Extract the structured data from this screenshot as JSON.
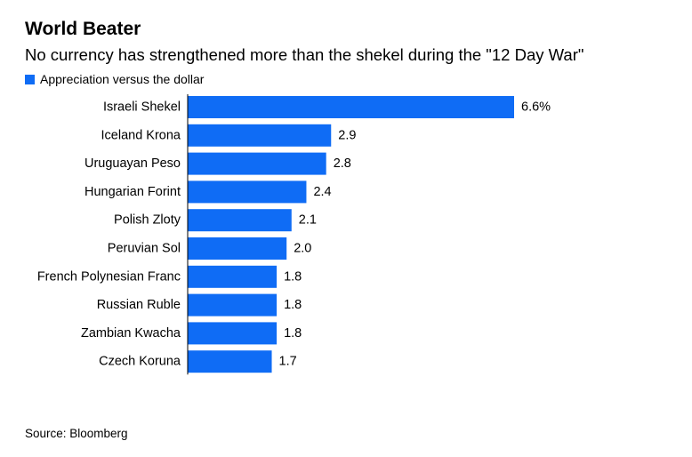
{
  "title": "World Beater",
  "subtitle": "No currency has strengthened more than the shekel during the \"12 Day War\"",
  "source": "Source: Bloomberg",
  "colors": {
    "bar": "#0f6cf5",
    "text": "#000000",
    "axis": "#000000"
  },
  "chart_data": {
    "type": "bar",
    "orientation": "horizontal",
    "categories": [
      "Israeli Shekel",
      "Iceland Krona",
      "Uruguayan Peso",
      "Hungarian Forint",
      "Polish Zloty",
      "Peruvian Sol",
      "French Polynesian Franc",
      "Russian Ruble",
      "Zambian Kwacha",
      "Czech Koruna"
    ],
    "series": [
      {
        "name": "Appreciation versus the dollar",
        "values": [
          6.6,
          2.9,
          2.8,
          2.4,
          2.1,
          2.0,
          1.8,
          1.8,
          1.8,
          1.7
        ],
        "data_labels": [
          "6.6%",
          "2.9",
          "2.8",
          "2.4",
          "2.1",
          "2.0",
          "1.8",
          "1.8",
          "1.8",
          "1.7"
        ]
      }
    ],
    "xlim": [
      0,
      6.6
    ],
    "grid": false,
    "legend_position": "top-left"
  }
}
